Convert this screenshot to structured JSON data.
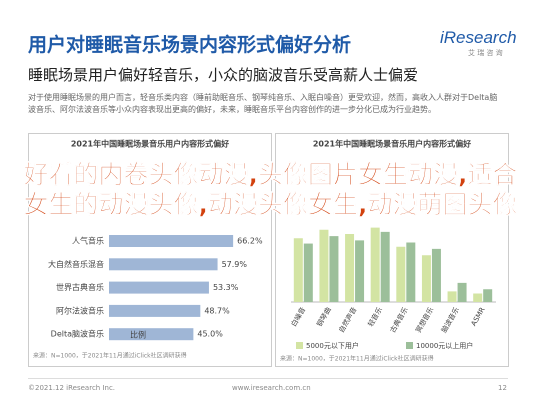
{
  "header": {
    "title": "用户对睡眠音乐场景内容形式偏好分析",
    "logo": "iResearch",
    "logo_sub": "艾 瑞 咨 询",
    "subtitle": "睡眠场景用户偏好轻音乐，小众的脑波音乐受高薪人士偏爱",
    "paragraph": "对于使用睡眠场景的用户而言，轻音乐类内容（睡前助眠音乐、钢琴纯音乐、入眠白噪音）更受欢迎，然而，高收入人群对于Delta脑波音乐、阿尔法波音乐等小众内容表现出更高的偏好，未来，睡眠音乐平台内容创作的进一步分化已成为行业趋势。"
  },
  "overlay": "好看的内卷头像动漫,头像图片女生动漫,适合女生的动漫头像,动漫头像女生,动漫萌图头像",
  "chart_data": [
    {
      "type": "hbar",
      "title": "2021年中国睡眠场景音乐用户内容形式偏好",
      "categories": [
        "人气音乐",
        "大自然音乐混音",
        "世界古典音乐",
        "阿尔法波音乐",
        "Delta脑波音乐"
      ],
      "values": [
        66.2,
        57.9,
        53.3,
        48.7,
        45.0
      ],
      "value_labels": [
        "66.2%",
        "57.9%",
        "53.3%",
        "48.7%",
        "45.0%"
      ],
      "xlim": [
        0,
        80
      ],
      "color": "#9fb6d6",
      "series_name": "比例",
      "source": "来源：N=1000，于2021年11月通过iClick社区调研获得"
    },
    {
      "type": "groupbar",
      "title": "2021年中国睡眠场景音乐用户内容形式偏好",
      "categories": [
        "白噪音",
        "钢琴曲",
        "自然声音",
        "轻音乐",
        "古典音乐",
        "冥想音乐",
        "脑波音乐",
        "ASMR"
      ],
      "series": [
        {
          "name": "5000元以下用户",
          "color": "#d3e4a3",
          "values": [
            60,
            68,
            64,
            70,
            52,
            44,
            10,
            8
          ]
        },
        {
          "name": "10000元以上用户",
          "color": "#9cbf9a",
          "values": [
            55,
            62,
            58,
            66,
            56,
            50,
            18,
            12
          ]
        }
      ],
      "ylim": [
        0,
        80
      ],
      "source": "来源：N=1000，于2021年11月通过iClick社区调研获得"
    }
  ],
  "footer": {
    "left": "©2021.12 iResearch Inc.",
    "center": "www.iresearch.com.cn",
    "page": "12"
  }
}
